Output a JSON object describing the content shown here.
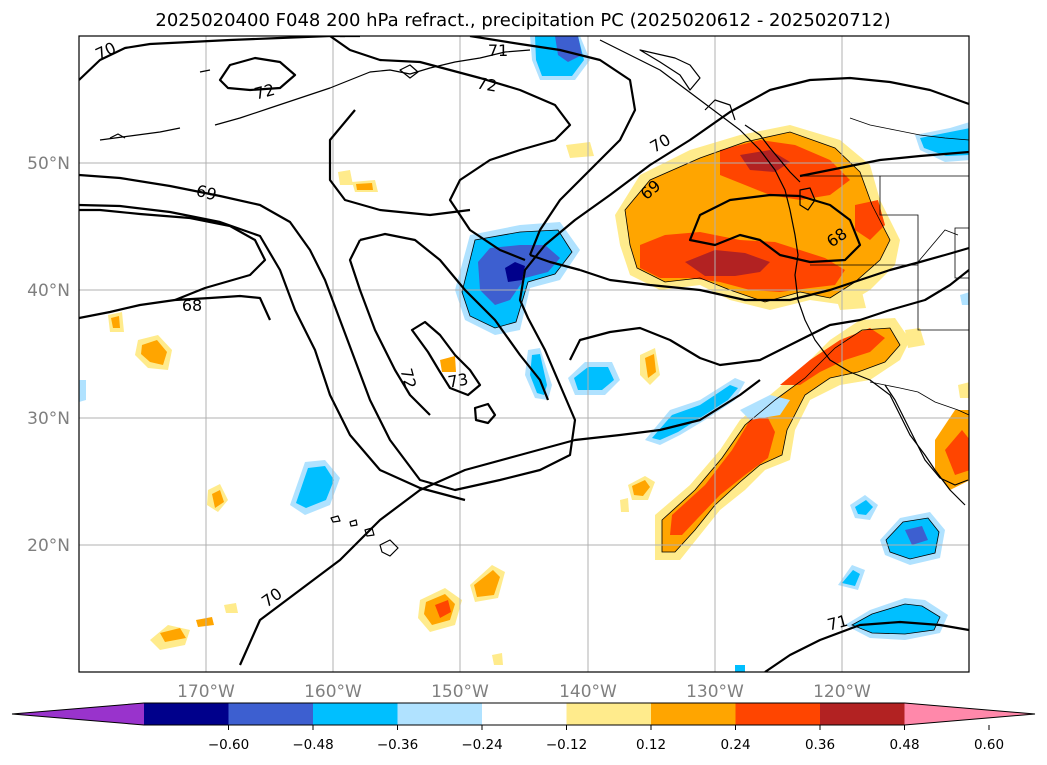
{
  "title": "2025020400 F048 200 hPa refract., precipitation PC (2025020612 - 2025020712)",
  "lon_ticks": [
    "170°W",
    "160°W",
    "150°W",
    "140°W",
    "130°W",
    "120°W"
  ],
  "lat_ticks": [
    "50°N",
    "40°N",
    "30°N",
    "20°N"
  ],
  "contour_labels": [
    {
      "id": "c70a",
      "text": "70"
    },
    {
      "id": "c71a",
      "text": "71"
    },
    {
      "id": "c72a",
      "text": "72"
    },
    {
      "id": "c72b",
      "text": "72"
    },
    {
      "id": "c69a",
      "text": "69"
    },
    {
      "id": "c68a",
      "text": "68"
    },
    {
      "id": "c72c",
      "text": "72"
    },
    {
      "id": "c73a",
      "text": "73"
    },
    {
      "id": "c70b",
      "text": "70"
    },
    {
      "id": "c69b",
      "text": "69"
    },
    {
      "id": "c68b",
      "text": "68"
    },
    {
      "id": "c70c",
      "text": "70"
    },
    {
      "id": "c71b",
      "text": "71"
    }
  ],
  "colorbar": {
    "colors": [
      "#9933cc",
      "#00008b",
      "#3d5fd0",
      "#00bfff",
      "#b0e2ff",
      "#ffffff",
      "#ffeb8c",
      "#ffa500",
      "#ff4500",
      "#b22222",
      "#ff88aa"
    ],
    "tick_labels": [
      "−0.60",
      "−0.48",
      "−0.36",
      "−0.24",
      "−0.12",
      "0.12",
      "0.24",
      "0.36",
      "0.48",
      "0.60"
    ],
    "levels": [
      -0.6,
      -0.48,
      -0.36,
      -0.24,
      -0.12,
      0.12,
      0.24,
      0.36,
      0.48,
      0.6
    ]
  },
  "map": {
    "projection": "PlateCarree",
    "lon_range": [
      -180,
      -110
    ],
    "lat_range": [
      10,
      60
    ],
    "refractivity_contour_levels": [
      68,
      69,
      70,
      71,
      72,
      73
    ]
  }
}
